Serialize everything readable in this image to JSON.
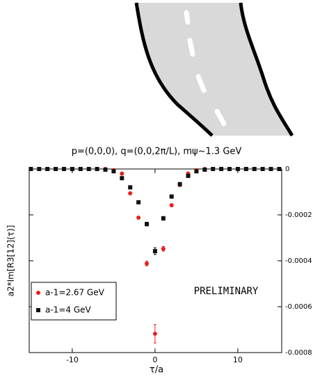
{
  "chart_data": {
    "type": "scatter",
    "title": "p=(0,0,0), q=(0,0,2π/L), mψ~1.3 GeV",
    "x_label": "τ/a",
    "y_label": "a2*Im[R3[12](τ)]",
    "annotation": "PRELIMINARY",
    "x": [
      -15,
      -14,
      -13,
      -12,
      -11,
      -10,
      -9,
      -8,
      -7,
      -6,
      -5,
      -4,
      -3,
      -2,
      -1,
      0,
      1,
      2,
      3,
      4,
      5,
      6,
      7,
      8,
      9,
      10,
      11,
      12,
      13,
      14,
      15
    ],
    "series": [
      {
        "name": "a-1=2.67 GeV",
        "color": "#e8201a",
        "marker": "circle",
        "values": [
          0,
          0,
          0,
          0,
          0,
          0,
          0,
          0,
          0,
          0,
          -5e-06,
          -2e-05,
          -0.000106,
          -0.000212,
          -0.000412,
          -0.000718,
          -0.000348,
          -0.000158,
          -7e-05,
          -2e-05,
          -5e-06,
          0,
          0,
          0,
          0,
          0,
          0,
          0,
          0,
          0,
          0
        ],
        "errors": [
          3e-06,
          3e-06,
          3e-06,
          3e-06,
          3e-06,
          3e-06,
          3e-06,
          3e-06,
          3e-06,
          3e-06,
          3e-06,
          4e-06,
          5e-06,
          6e-06,
          1e-05,
          4e-05,
          1e-05,
          6e-06,
          5e-06,
          4e-06,
          3e-06,
          3e-06,
          3e-06,
          3e-06,
          3e-06,
          3e-06,
          3e-06,
          3e-06,
          3e-06,
          3e-06,
          3e-06
        ]
      },
      {
        "name": "a-1=4 GeV",
        "color": "#111111",
        "marker": "square",
        "values": [
          0,
          0,
          0,
          0,
          0,
          0,
          0,
          0,
          0,
          -3e-06,
          -1e-05,
          -4e-05,
          -8e-05,
          -0.000145,
          -0.00024,
          -0.000358,
          -0.000215,
          -0.00012,
          -6.6e-05,
          -3e-05,
          -1e-05,
          -3e-06,
          0,
          0,
          0,
          0,
          0,
          0,
          0,
          0,
          0
        ],
        "errors": [
          3e-06,
          3e-06,
          3e-06,
          3e-06,
          3e-06,
          3e-06,
          3e-06,
          3e-06,
          3e-06,
          3e-06,
          3e-06,
          4e-06,
          5e-06,
          6e-06,
          8e-06,
          1.5e-05,
          8e-06,
          6e-06,
          5e-06,
          4e-06,
          3e-06,
          3e-06,
          3e-06,
          3e-06,
          3e-06,
          3e-06,
          3e-06,
          3e-06,
          3e-06,
          3e-06,
          3e-06
        ]
      }
    ],
    "xlim": [
      -15.2,
      15.3
    ],
    "xticks": [
      -10,
      0,
      10
    ],
    "ylim": [
      -0.0008,
      0
    ],
    "yticks": [
      0,
      -0.0002,
      -0.0004,
      -0.0006,
      -0.0008
    ],
    "legend": "lower left"
  }
}
